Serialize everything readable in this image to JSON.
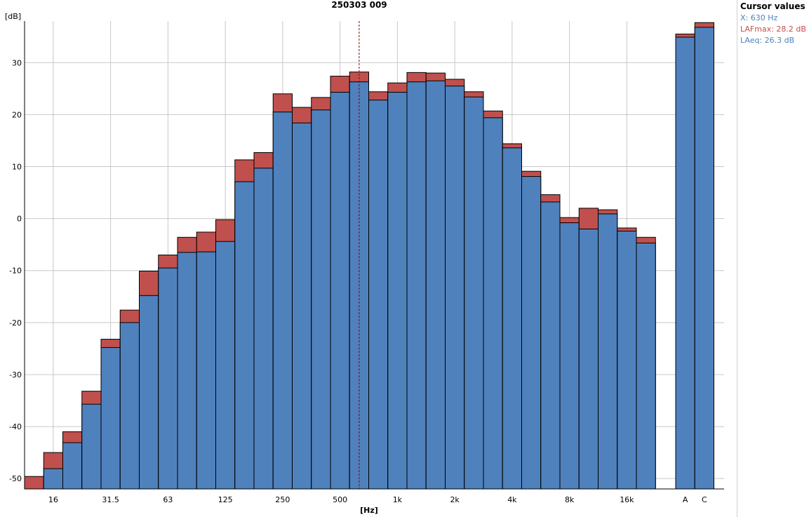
{
  "chart_data": {
    "type": "bar",
    "title": "250303 009",
    "ylabel": "[dB]",
    "xlabel": "[Hz]",
    "ylim": [
      -52,
      38
    ],
    "yticks": [
      -50,
      -40,
      -30,
      -20,
      -10,
      0,
      10,
      20,
      30
    ],
    "grid": true,
    "stacked_overlay": true,
    "categories": [
      "12.5",
      "16",
      "20",
      "25",
      "31.5",
      "40",
      "50",
      "63",
      "80",
      "100",
      "125",
      "160",
      "200",
      "250",
      "315",
      "400",
      "500",
      "630",
      "800",
      "1k",
      "1.25k",
      "1.6k",
      "2k",
      "2.5k",
      "3.15k",
      "4k",
      "5k",
      "6.3k",
      "8k",
      "10k",
      "12.5k",
      "16k",
      "20k"
    ],
    "tick_labels": [
      {
        "category": "16",
        "label": "16"
      },
      {
        "category": "31.5",
        "label": "31.5"
      },
      {
        "category": "63",
        "label": "63"
      },
      {
        "category": "125",
        "label": "125"
      },
      {
        "category": "250",
        "label": "250"
      },
      {
        "category": "500",
        "label": "500"
      },
      {
        "category": "1k",
        "label": "1k"
      },
      {
        "category": "2k",
        "label": "2k"
      },
      {
        "category": "4k",
        "label": "4k"
      },
      {
        "category": "8k",
        "label": "8k"
      },
      {
        "category": "16k",
        "label": "16k"
      }
    ],
    "series": [
      {
        "name": "LAFmax",
        "color": "#c0504d",
        "values": [
          -49.6,
          -45.0,
          -41.0,
          -33.2,
          -23.2,
          -17.6,
          -10.1,
          -7.0,
          -3.6,
          -2.6,
          -0.2,
          11.3,
          12.7,
          24.0,
          21.4,
          23.3,
          27.4,
          28.2,
          24.4,
          26.1,
          28.1,
          28.0,
          26.8,
          24.4,
          20.7,
          14.4,
          9.1,
          4.6,
          0.2,
          2.0,
          1.7,
          -1.8,
          -3.6
        ]
      },
      {
        "name": "LAeq",
        "color": "#4f81bd",
        "values": [
          -52.0,
          -48.1,
          -43.1,
          -35.7,
          -24.8,
          -20.0,
          -14.8,
          -9.5,
          -6.5,
          -6.4,
          -4.4,
          7.1,
          9.7,
          20.5,
          18.4,
          20.9,
          24.3,
          26.3,
          22.8,
          24.3,
          26.3,
          26.5,
          25.5,
          23.4,
          19.4,
          13.6,
          8.1,
          3.2,
          -0.8,
          -2.0,
          0.9,
          -2.4,
          -4.7
        ]
      }
    ],
    "totals": {
      "categories": [
        "A",
        "C"
      ],
      "LAFmax": [
        35.5,
        37.7
      ],
      "LAeq": [
        34.9,
        36.8
      ]
    },
    "cursor_category": "630"
  },
  "cursor": {
    "title": "Cursor values",
    "x": "X: 630 Hz",
    "lafmax": "LAFmax: 28.2 dB",
    "laeq": "LAeq: 26.3 dB",
    "colors": {
      "x": "#4f81bd",
      "lafmax": "#c0504d",
      "laeq": "#4f81bd"
    }
  }
}
